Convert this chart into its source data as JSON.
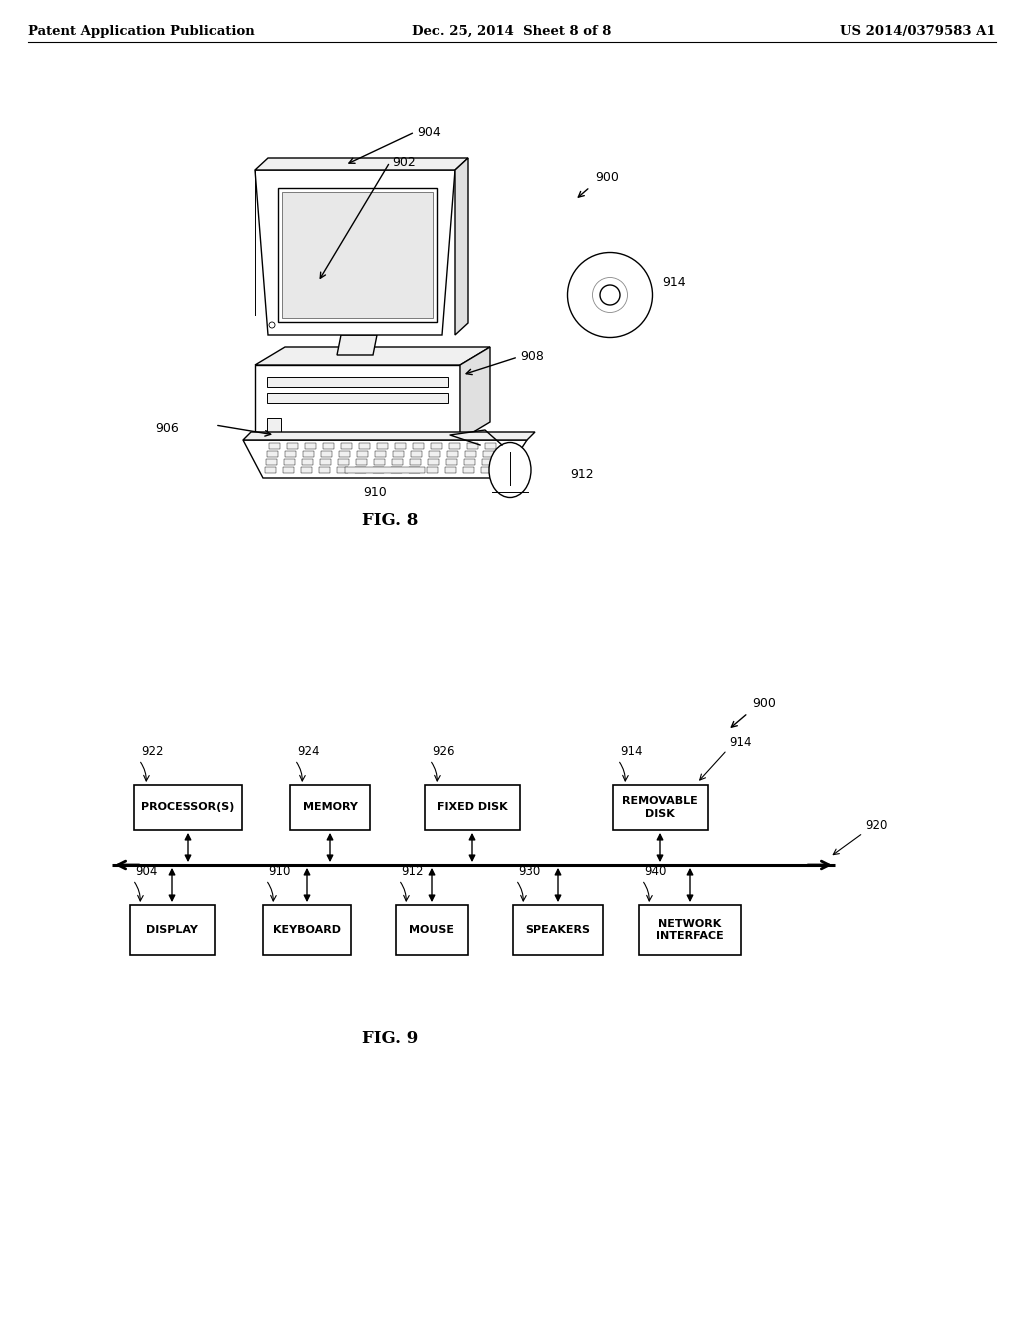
{
  "bg_color": "#ffffff",
  "text_color": "#000000",
  "header_left": "Patent Application Publication",
  "header_center": "Dec. 25, 2014  Sheet 8 of 8",
  "header_right": "US 2014/0379583 A1",
  "fig8_caption": "FIG. 8",
  "fig9_caption": "FIG. 9",
  "fig8_ref_900": "900",
  "fig8_ref_902": "902",
  "fig8_ref_904": "904",
  "fig8_ref_906": "906",
  "fig8_ref_908": "908",
  "fig8_ref_910": "910",
  "fig8_ref_912": "912",
  "fig8_ref_914": "914",
  "fig9_ref_900": "900",
  "fig9_ref_914": "914",
  "fig9_ref_920": "920",
  "fig9_ref_922": "922",
  "fig9_ref_924": "924",
  "fig9_ref_926": "926",
  "fig9_ref_904": "904",
  "fig9_ref_910": "910",
  "fig9_ref_912": "912",
  "fig9_ref_930": "930",
  "fig9_ref_940": "940"
}
